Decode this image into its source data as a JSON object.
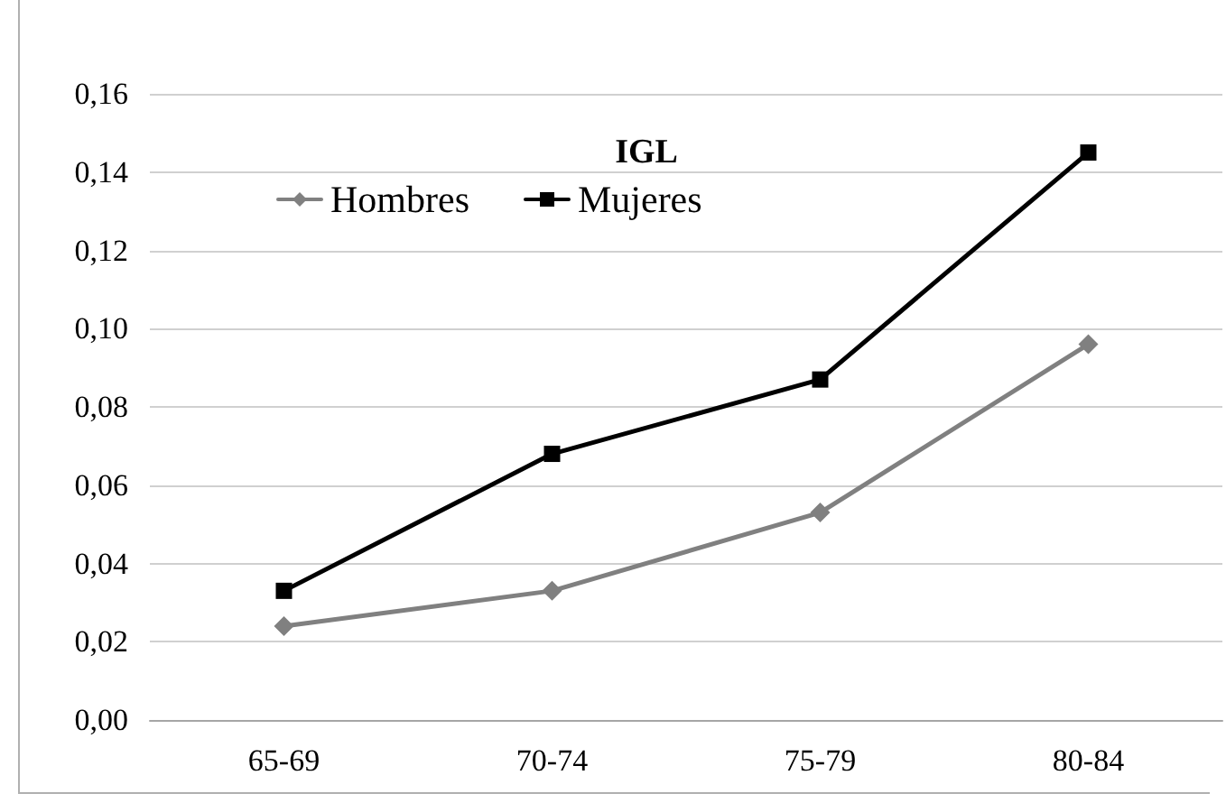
{
  "chart_data": {
    "type": "line",
    "title": "IGL",
    "categories": [
      "65-69",
      "70-74",
      "75-79",
      "80-84"
    ],
    "series": [
      {
        "name": "Hombres",
        "color": "#808080",
        "marker": "diamond",
        "values": [
          0.024,
          0.033,
          0.053,
          0.096
        ]
      },
      {
        "name": "Mujeres",
        "color": "#000000",
        "marker": "square",
        "values": [
          0.033,
          0.068,
          0.087,
          0.145
        ]
      }
    ],
    "ylim": [
      0,
      0.16
    ],
    "yticks": [
      {
        "value": 0,
        "label": "0,00"
      },
      {
        "value": 0.02,
        "label": "0,02"
      },
      {
        "value": 0.04,
        "label": "0,04"
      },
      {
        "value": 0.06,
        "label": "0,06"
      },
      {
        "value": 0.08,
        "label": "0,08"
      },
      {
        "value": 0.1,
        "label": "0,10"
      },
      {
        "value": 0.12,
        "label": "0,12"
      },
      {
        "value": 0.14,
        "label": "0,14"
      },
      {
        "value": 0.16,
        "label": "0,16"
      }
    ],
    "grid": "y",
    "legend": "top left",
    "line_style": "solid"
  }
}
